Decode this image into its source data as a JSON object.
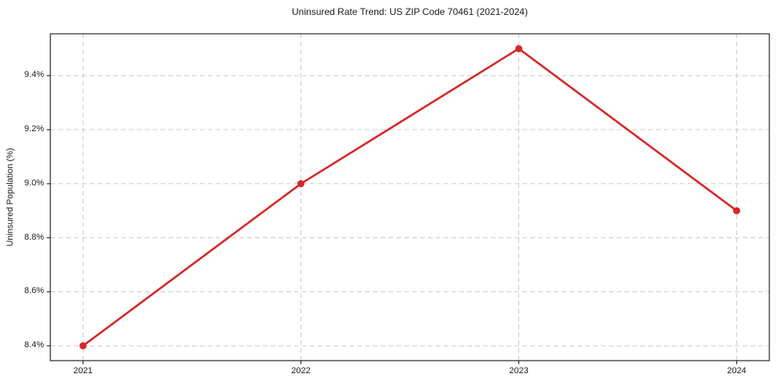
{
  "page": {
    "background_color": "#ffffff",
    "text_color": "#1a1a1a",
    "grid_color": "#cccccc",
    "frame_color": "#262626"
  },
  "chart_data": {
    "type": "line",
    "title": "Uninsured Rate Trend: US ZIP Code 70461 (2021-2024)",
    "xlabel": "",
    "ylabel": "Uninsured Population (%)",
    "x": [
      2021,
      2022,
      2023,
      2024
    ],
    "x_tick_labels": [
      "2021",
      "2022",
      "2023",
      "2024"
    ],
    "series": [
      {
        "name": "Uninsured rate (%)",
        "values": [
          8.4,
          9.0,
          9.5,
          8.9
        ]
      }
    ],
    "y_ticks": [
      8.4,
      8.6,
      8.8,
      9.0,
      9.2,
      9.4
    ],
    "y_tick_labels": [
      "8.4%",
      "8.6%",
      "8.8%",
      "9.0%",
      "9.2%",
      "9.4%"
    ],
    "xlim": [
      2020.85,
      2024.15
    ],
    "ylim": [
      8.345,
      9.555
    ],
    "grid": "both, dashed",
    "legend_position": "none",
    "line_color": "#d62728",
    "marker": "circle",
    "marker_radius": 4.5,
    "line_width": 2.6
  }
}
